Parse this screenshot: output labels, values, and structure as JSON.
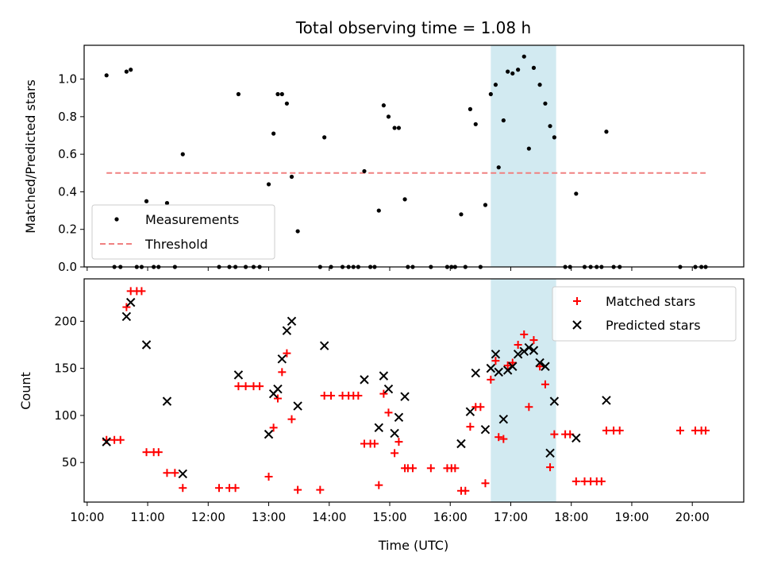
{
  "title": "Total observing time = 1.08 h",
  "colors": {
    "measurement": "#000000",
    "threshold": "#f08080",
    "matched": "#ff0000",
    "predicted": "#000000",
    "highlight": "#add8e6"
  },
  "chart_data": [
    {
      "type": "scatter",
      "ylabel": "Matched/Predicted stars",
      "xlim": [
        9.95,
        20.85
      ],
      "ylim": [
        0,
        1.18
      ],
      "yticks": [
        0.0,
        0.2,
        0.4,
        0.6,
        0.8,
        1.0
      ],
      "ytick_labels": [
        "0.0",
        "0.2",
        "0.4",
        "0.6",
        "0.8",
        "1.0"
      ],
      "highlight_span": [
        16.67,
        17.75
      ],
      "legend": {
        "placement": "lower-left",
        "items": [
          "Measurements",
          "Threshold"
        ]
      },
      "series": [
        {
          "name": "Measurements",
          "marker": "dot",
          "points": [
            [
              10.32,
              1.02
            ],
            [
              10.45,
              0.0
            ],
            [
              10.55,
              0.0
            ],
            [
              10.65,
              1.04
            ],
            [
              10.72,
              1.05
            ],
            [
              10.82,
              0.0
            ],
            [
              10.9,
              0.0
            ],
            [
              10.98,
              0.35
            ],
            [
              11.1,
              0.0
            ],
            [
              11.18,
              0.0
            ],
            [
              11.32,
              0.34
            ],
            [
              11.45,
              0.0
            ],
            [
              11.58,
              0.6
            ],
            [
              12.18,
              0.0
            ],
            [
              12.35,
              0.0
            ],
            [
              12.45,
              0.0
            ],
            [
              12.5,
              0.92
            ],
            [
              12.62,
              0.0
            ],
            [
              12.75,
              0.0
            ],
            [
              12.85,
              0.0
            ],
            [
              13.0,
              0.44
            ],
            [
              13.08,
              0.71
            ],
            [
              13.15,
              0.92
            ],
            [
              13.22,
              0.92
            ],
            [
              13.3,
              0.87
            ],
            [
              13.38,
              0.48
            ],
            [
              13.48,
              0.19
            ],
            [
              13.85,
              0.0
            ],
            [
              13.92,
              0.69
            ],
            [
              14.03,
              0.0
            ],
            [
              14.22,
              0.0
            ],
            [
              14.32,
              0.0
            ],
            [
              14.4,
              0.0
            ],
            [
              14.48,
              0.0
            ],
            [
              14.58,
              0.51
            ],
            [
              14.68,
              0.0
            ],
            [
              14.75,
              0.0
            ],
            [
              14.82,
              0.3
            ],
            [
              14.9,
              0.86
            ],
            [
              14.98,
              0.8
            ],
            [
              15.08,
              0.74
            ],
            [
              15.15,
              0.74
            ],
            [
              15.25,
              0.36
            ],
            [
              15.3,
              0.0
            ],
            [
              15.38,
              0.0
            ],
            [
              15.68,
              0.0
            ],
            [
              15.95,
              0.0
            ],
            [
              16.02,
              0.0
            ],
            [
              16.08,
              0.0
            ],
            [
              16.18,
              0.28
            ],
            [
              16.25,
              0.0
            ],
            [
              16.33,
              0.84
            ],
            [
              16.42,
              0.76
            ],
            [
              16.5,
              0.0
            ],
            [
              16.58,
              0.33
            ],
            [
              16.67,
              0.92
            ],
            [
              16.75,
              0.97
            ],
            [
              16.8,
              0.53
            ],
            [
              16.88,
              0.78
            ],
            [
              16.95,
              1.04
            ],
            [
              17.03,
              1.03
            ],
            [
              17.12,
              1.05
            ],
            [
              17.22,
              1.12
            ],
            [
              17.3,
              0.63
            ],
            [
              17.38,
              1.06
            ],
            [
              17.48,
              0.97
            ],
            [
              17.57,
              0.87
            ],
            [
              17.65,
              0.75
            ],
            [
              17.72,
              0.69
            ],
            [
              17.9,
              0.0
            ],
            [
              17.98,
              0.0
            ],
            [
              18.08,
              0.39
            ],
            [
              18.22,
              0.0
            ],
            [
              18.32,
              0.0
            ],
            [
              18.42,
              0.0
            ],
            [
              18.5,
              0.0
            ],
            [
              18.58,
              0.72
            ],
            [
              18.7,
              0.0
            ],
            [
              18.8,
              0.0
            ],
            [
              19.8,
              0.0
            ],
            [
              20.05,
              0.0
            ],
            [
              20.15,
              0.0
            ],
            [
              20.22,
              0.0
            ]
          ]
        },
        {
          "name": "Threshold",
          "marker": "dashed-line",
          "points": [
            [
              10.32,
              0.5
            ],
            [
              20.22,
              0.5
            ]
          ]
        }
      ]
    },
    {
      "type": "scatter",
      "xlabel": "Time (UTC)",
      "ylabel": "Count",
      "xlim": [
        9.95,
        20.85
      ],
      "ylim": [
        8,
        245
      ],
      "xticks": [
        10,
        11,
        12,
        13,
        14,
        15,
        16,
        17,
        18,
        19,
        20
      ],
      "xtick_labels": [
        "10:00",
        "11:00",
        "12:00",
        "13:00",
        "14:00",
        "15:00",
        "16:00",
        "17:00",
        "18:00",
        "19:00",
        "20:00"
      ],
      "yticks": [
        50,
        100,
        150,
        200
      ],
      "ytick_labels": [
        "50",
        "100",
        "150",
        "200"
      ],
      "highlight_span": [
        16.67,
        17.75
      ],
      "legend": {
        "placement": "upper-right",
        "items": [
          "Matched stars",
          "Predicted stars"
        ]
      },
      "series": [
        {
          "name": "Matched stars",
          "marker": "plus",
          "points": [
            [
              10.32,
              74
            ],
            [
              10.45,
              74
            ],
            [
              10.55,
              74
            ],
            [
              10.65,
              215
            ],
            [
              10.72,
              232
            ],
            [
              10.82,
              232
            ],
            [
              10.9,
              232
            ],
            [
              10.98,
              61
            ],
            [
              11.1,
              61
            ],
            [
              11.18,
              61
            ],
            [
              11.32,
              39
            ],
            [
              11.45,
              39
            ],
            [
              11.58,
              23
            ],
            [
              12.18,
              23
            ],
            [
              12.35,
              23
            ],
            [
              12.45,
              23
            ],
            [
              12.5,
              131
            ],
            [
              12.62,
              131
            ],
            [
              12.75,
              131
            ],
            [
              12.85,
              131
            ],
            [
              13.0,
              35
            ],
            [
              13.08,
              87
            ],
            [
              13.15,
              118
            ],
            [
              13.22,
              146
            ],
            [
              13.3,
              166
            ],
            [
              13.38,
              96
            ],
            [
              13.48,
              21
            ],
            [
              13.85,
              21
            ],
            [
              13.92,
              121
            ],
            [
              14.03,
              121
            ],
            [
              14.22,
              121
            ],
            [
              14.32,
              121
            ],
            [
              14.4,
              121
            ],
            [
              14.48,
              121
            ],
            [
              14.58,
              70
            ],
            [
              14.68,
              70
            ],
            [
              14.75,
              70
            ],
            [
              14.82,
              26
            ],
            [
              14.9,
              123
            ],
            [
              14.98,
              103
            ],
            [
              15.08,
              60
            ],
            [
              15.15,
              72
            ],
            [
              15.25,
              44
            ],
            [
              15.3,
              44
            ],
            [
              15.38,
              44
            ],
            [
              15.68,
              44
            ],
            [
              15.95,
              44
            ],
            [
              16.02,
              44
            ],
            [
              16.08,
              44
            ],
            [
              16.18,
              20
            ],
            [
              16.25,
              20
            ],
            [
              16.33,
              88
            ],
            [
              16.42,
              109
            ],
            [
              16.5,
              109
            ],
            [
              16.58,
              28
            ],
            [
              16.67,
              138
            ],
            [
              16.75,
              158
            ],
            [
              16.8,
              77
            ],
            [
              16.88,
              75
            ],
            [
              16.95,
              153
            ],
            [
              17.03,
              156
            ],
            [
              17.12,
              175
            ],
            [
              17.22,
              186
            ],
            [
              17.3,
              109
            ],
            [
              17.38,
              180
            ],
            [
              17.48,
              152
            ],
            [
              17.57,
              133
            ],
            [
              17.65,
              45
            ],
            [
              17.72,
              80
            ],
            [
              17.9,
              80
            ],
            [
              17.98,
              80
            ],
            [
              18.08,
              30
            ],
            [
              18.22,
              30
            ],
            [
              18.32,
              30
            ],
            [
              18.42,
              30
            ],
            [
              18.5,
              30
            ],
            [
              18.58,
              84
            ],
            [
              18.7,
              84
            ],
            [
              18.8,
              84
            ],
            [
              19.8,
              84
            ],
            [
              20.05,
              84
            ],
            [
              20.15,
              84
            ],
            [
              20.22,
              84
            ]
          ]
        },
        {
          "name": "Predicted stars",
          "marker": "x",
          "points": [
            [
              10.32,
              72
            ],
            [
              10.65,
              205
            ],
            [
              10.72,
              220
            ],
            [
              10.98,
              175
            ],
            [
              11.32,
              115
            ],
            [
              11.58,
              38
            ],
            [
              12.5,
              143
            ],
            [
              13.0,
              80
            ],
            [
              13.08,
              123
            ],
            [
              13.15,
              128
            ],
            [
              13.22,
              160
            ],
            [
              13.3,
              190
            ],
            [
              13.38,
              200
            ],
            [
              13.48,
              110
            ],
            [
              13.92,
              174
            ],
            [
              14.58,
              138
            ],
            [
              14.82,
              87
            ],
            [
              14.9,
              142
            ],
            [
              14.98,
              128
            ],
            [
              15.08,
              81
            ],
            [
              15.15,
              98
            ],
            [
              15.25,
              120
            ],
            [
              16.18,
              70
            ],
            [
              16.33,
              104
            ],
            [
              16.42,
              145
            ],
            [
              16.58,
              85
            ],
            [
              16.67,
              150
            ],
            [
              16.75,
              165
            ],
            [
              16.8,
              146
            ],
            [
              16.88,
              96
            ],
            [
              16.95,
              148
            ],
            [
              17.03,
              152
            ],
            [
              17.12,
              165
            ],
            [
              17.22,
              168
            ],
            [
              17.3,
              172
            ],
            [
              17.38,
              169
            ],
            [
              17.48,
              156
            ],
            [
              17.57,
              152
            ],
            [
              17.65,
              60
            ],
            [
              17.72,
              115
            ],
            [
              18.08,
              76
            ],
            [
              18.58,
              116
            ]
          ]
        }
      ]
    }
  ]
}
